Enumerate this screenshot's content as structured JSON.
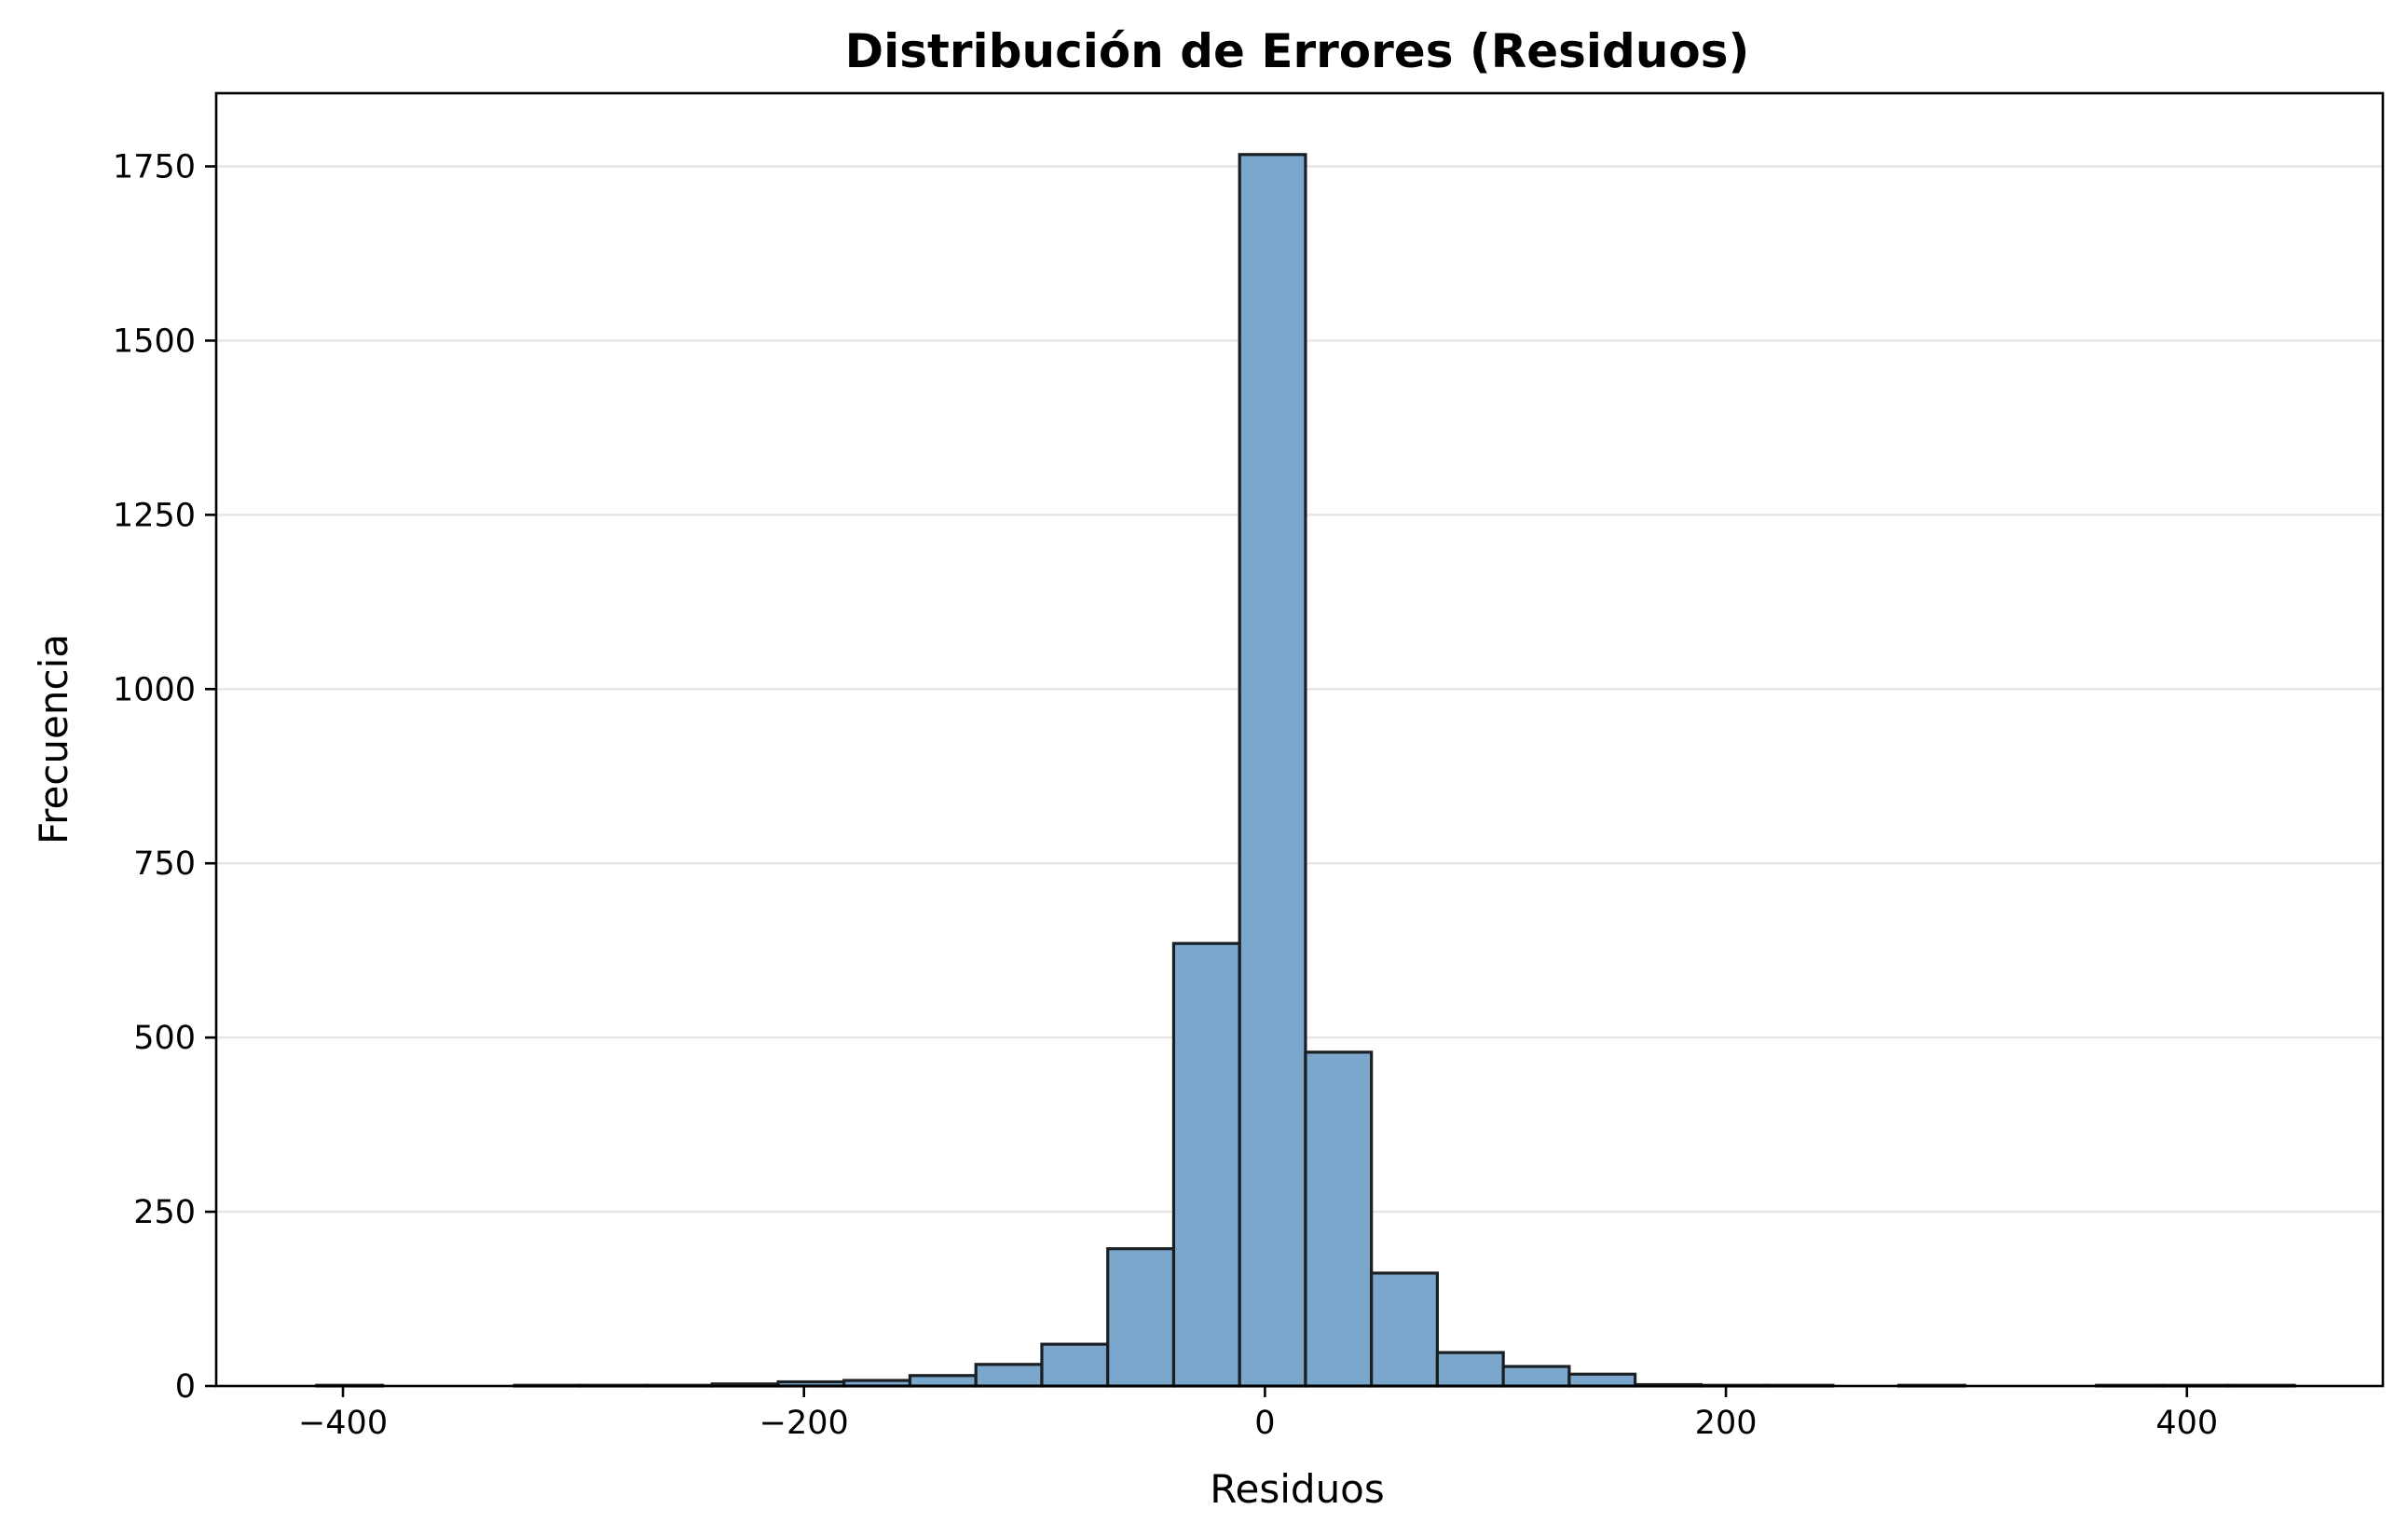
{
  "chart_data": {
    "type": "bar",
    "title": "Distribución de Errores (Residuos)",
    "xlabel": "Residuos",
    "ylabel": "Frecuencia",
    "xlim": [
      -455,
      485
    ],
    "ylim": [
      0,
      1855
    ],
    "x_ticks": [
      -400,
      -200,
      0,
      200,
      400
    ],
    "x_tick_labels": [
      "−400",
      "−200",
      "0",
      "200",
      "400"
    ],
    "y_ticks": [
      0,
      250,
      500,
      750,
      1000,
      1250,
      1500,
      1750
    ],
    "y_tick_labels": [
      "0",
      "250",
      "500",
      "750",
      "1000",
      "1250",
      "1500",
      "1750"
    ],
    "grid": "horizontal",
    "bar_color": "#7ba7cc",
    "edge_color": "#1a1f24",
    "bins": [
      {
        "start": -411.4,
        "end": -382.8,
        "count": 1
      },
      {
        "start": -382.8,
        "end": -354.2,
        "count": 0
      },
      {
        "start": -354.2,
        "end": -325.6,
        "count": 0
      },
      {
        "start": -325.6,
        "end": -297.0,
        "count": 1
      },
      {
        "start": -297.0,
        "end": -268.4,
        "count": 1
      },
      {
        "start": -268.4,
        "end": -239.8,
        "count": 1
      },
      {
        "start": -239.8,
        "end": -211.2,
        "count": 3
      },
      {
        "start": -211.2,
        "end": -182.6,
        "count": 6
      },
      {
        "start": -182.6,
        "end": -154.0,
        "count": 8
      },
      {
        "start": -154.0,
        "end": -125.4,
        "count": 15
      },
      {
        "start": -125.4,
        "end": -96.8,
        "count": 31
      },
      {
        "start": -96.8,
        "end": -68.2,
        "count": 60
      },
      {
        "start": -68.2,
        "end": -39.6,
        "count": 197
      },
      {
        "start": -39.6,
        "end": -11.0,
        "count": 635
      },
      {
        "start": -11.0,
        "end": 17.6,
        "count": 1767
      },
      {
        "start": 17.6,
        "end": 46.2,
        "count": 479
      },
      {
        "start": 46.2,
        "end": 74.8,
        "count": 162
      },
      {
        "start": 74.8,
        "end": 103.4,
        "count": 48
      },
      {
        "start": 103.4,
        "end": 132.0,
        "count": 28
      },
      {
        "start": 132.0,
        "end": 160.6,
        "count": 17
      },
      {
        "start": 160.6,
        "end": 189.2,
        "count": 2
      },
      {
        "start": 189.2,
        "end": 217.8,
        "count": 1
      },
      {
        "start": 217.8,
        "end": 246.4,
        "count": 1
      },
      {
        "start": 246.4,
        "end": 275.0,
        "count": 0
      },
      {
        "start": 275.0,
        "end": 303.6,
        "count": 1
      },
      {
        "start": 303.6,
        "end": 332.2,
        "count": 0
      },
      {
        "start": 332.2,
        "end": 360.8,
        "count": 0
      },
      {
        "start": 360.8,
        "end": 389.4,
        "count": 1
      },
      {
        "start": 389.4,
        "end": 418.0,
        "count": 1
      },
      {
        "start": 418.0,
        "end": 446.6,
        "count": 1
      }
    ]
  }
}
